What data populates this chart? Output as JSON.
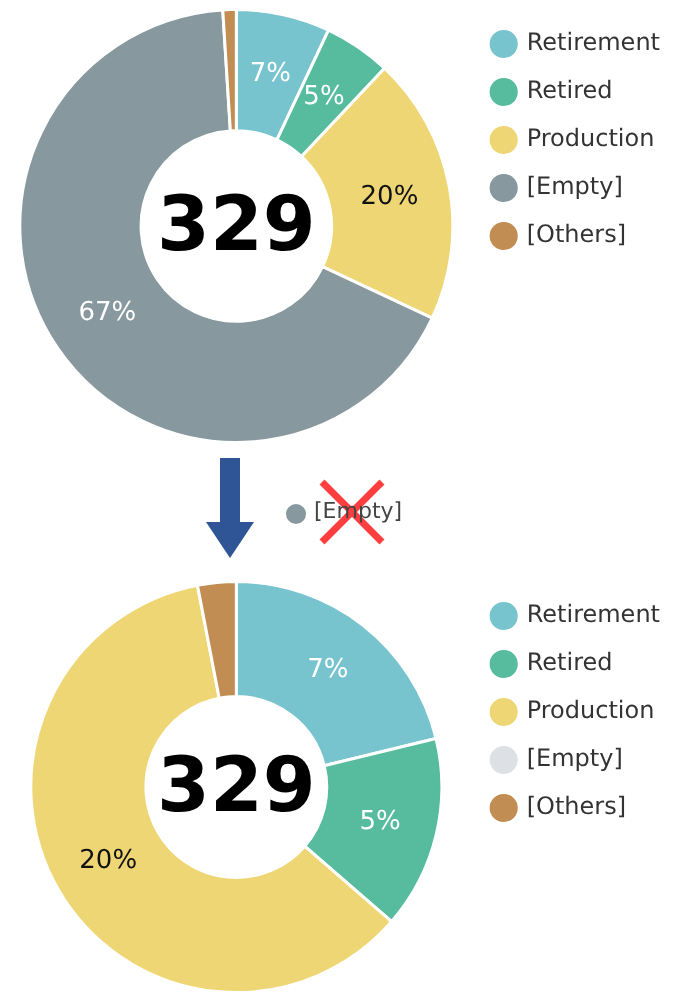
{
  "chart_data": [
    {
      "type": "donut",
      "categories": [
        "Retirement",
        "Retired",
        "Production",
        "[Empty]",
        "[Others]"
      ],
      "values": [
        7,
        5,
        20,
        67,
        1
      ],
      "colors": [
        "#77c3ce",
        "#57bb9d",
        "#efd675",
        "#87989f",
        "#c28d52"
      ],
      "value_labels": [
        "7%",
        "5%",
        "20%",
        "67%",
        null
      ],
      "legend": "right",
      "annotations": [
        "329"
      ]
    },
    {
      "type": "donut",
      "categories": [
        "Retirement",
        "Retired",
        "Production",
        "[Empty]",
        "[Others]"
      ],
      "values": [
        7,
        5,
        20,
        null,
        1
      ],
      "colors": [
        "#77c3ce",
        "#57bb9d",
        "#efd675",
        "#dde1e5",
        "#c28d52"
      ],
      "value_labels": [
        "7%",
        "5%",
        "20%",
        null,
        null
      ],
      "legend": "right",
      "annotations": [
        "329",
        "[Empty]"
      ]
    }
  ]
}
